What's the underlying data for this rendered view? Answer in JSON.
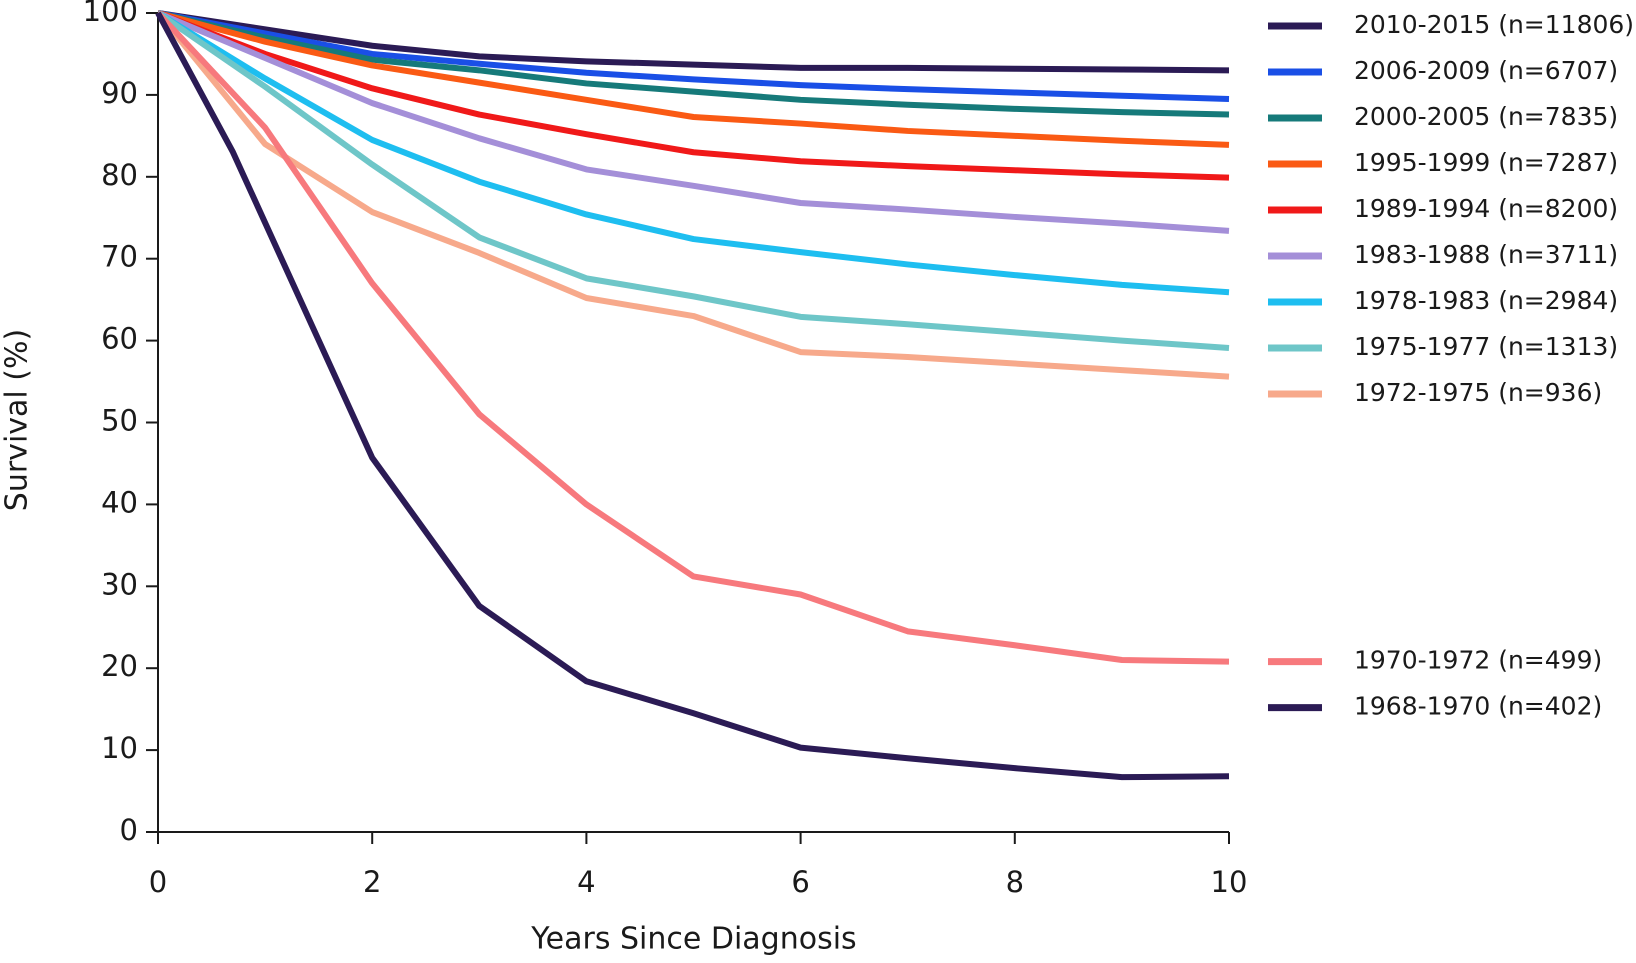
{
  "chart_data": {
    "type": "line",
    "x_label": "Years Since Diagnosis",
    "y_label": "Survival (%)",
    "xlim": [
      0,
      10
    ],
    "xticks": [
      0,
      2,
      4,
      6,
      8,
      10
    ],
    "ylim": [
      0,
      100
    ],
    "yticks": [
      0,
      10,
      20,
      30,
      40,
      50,
      60,
      70,
      80,
      90,
      100
    ],
    "grid": false,
    "series": [
      {
        "name": "2010-2015 (n=11806)",
        "color": "#2b1b55",
        "x": [
          0,
          1,
          2,
          3,
          4,
          5,
          6,
          7,
          8,
          9,
          10
        ],
        "values": [
          100,
          98,
          96,
          94.7,
          94.1,
          93.7,
          93.3,
          93.3,
          93.2,
          93.1,
          93
        ]
      },
      {
        "name": "2006-2009 (n=6707)",
        "color": "#1a4fe6",
        "x": [
          0,
          1,
          2,
          3,
          4,
          5,
          6,
          7,
          8,
          9,
          10
        ],
        "values": [
          100,
          97.5,
          95,
          93.8,
          92.7,
          91.9,
          91.2,
          90.7,
          90.3,
          89.9,
          89.5
        ]
      },
      {
        "name": "2000-2005 (n=7835)",
        "color": "#167a7a",
        "x": [
          0,
          1,
          2,
          3,
          4,
          5,
          6,
          7,
          8,
          9,
          10
        ],
        "values": [
          100,
          97,
          94.3,
          93,
          91.4,
          90.4,
          89.4,
          88.8,
          88.3,
          87.9,
          87.6
        ]
      },
      {
        "name": "1995-1999 (n=7287)",
        "color": "#fa5a14",
        "x": [
          0,
          1,
          2,
          3,
          4,
          5,
          6,
          7,
          8,
          9,
          10
        ],
        "values": [
          100,
          96.5,
          93.6,
          91.5,
          89.4,
          87.3,
          86.5,
          85.6,
          85,
          84.4,
          83.9
        ]
      },
      {
        "name": "1989-1994 (n=8200)",
        "color": "#f01919",
        "x": [
          0,
          1,
          2,
          3,
          4,
          5,
          6,
          7,
          8,
          9,
          10
        ],
        "values": [
          100,
          95,
          90.8,
          87.6,
          85.2,
          83,
          81.9,
          81.3,
          80.8,
          80.3,
          79.9
        ]
      },
      {
        "name": "1983-1988 (n=3711)",
        "color": "#a48fd8",
        "x": [
          0,
          1,
          2,
          3,
          4,
          5,
          6,
          7,
          8,
          9,
          10
        ],
        "values": [
          100,
          94.5,
          89,
          84.7,
          80.9,
          78.9,
          76.8,
          76,
          75.1,
          74.3,
          73.4
        ]
      },
      {
        "name": "1978-1983 (n=2984)",
        "color": "#1ebef0",
        "x": [
          0,
          1,
          2,
          3,
          4,
          5,
          6,
          7,
          8,
          9,
          10
        ],
        "values": [
          100,
          92,
          84.5,
          79.4,
          75.4,
          72.4,
          70.8,
          69.3,
          68,
          66.8,
          65.9
        ]
      },
      {
        "name": "1975-1977 (n=1313)",
        "color": "#6ec6c8",
        "x": [
          0,
          1,
          2,
          3,
          4,
          5,
          6,
          7,
          8,
          9,
          10
        ],
        "values": [
          100,
          91,
          81.5,
          72.6,
          67.6,
          65.4,
          62.9,
          62,
          61,
          60,
          59.1
        ]
      },
      {
        "name": "1972-1975 (n=936)",
        "color": "#f7a98b",
        "x": [
          0,
          1,
          2,
          3,
          4,
          5,
          6,
          7,
          8,
          9,
          10
        ],
        "values": [
          100,
          84,
          75.7,
          70.7,
          65.2,
          63,
          58.6,
          58,
          57.2,
          56.4,
          55.6
        ]
      },
      {
        "name": "1970-1972 (n=499)",
        "color": "#f7797d",
        "x": [
          0,
          1,
          2,
          3,
          4,
          5,
          6,
          7,
          8,
          9,
          10
        ],
        "values": [
          100,
          86,
          67,
          51,
          40,
          31.2,
          29,
          24.5,
          22.8,
          21,
          20.8
        ]
      },
      {
        "name": "1968-1970 (n=402)",
        "color": "#2b1b55",
        "x": [
          0,
          0.7,
          2,
          3,
          4,
          5,
          6,
          7,
          8,
          9,
          10
        ],
        "values": [
          100,
          83,
          45.7,
          27.6,
          18.4,
          14.5,
          10.3,
          9,
          7.8,
          6.7,
          6.8
        ]
      }
    ]
  }
}
